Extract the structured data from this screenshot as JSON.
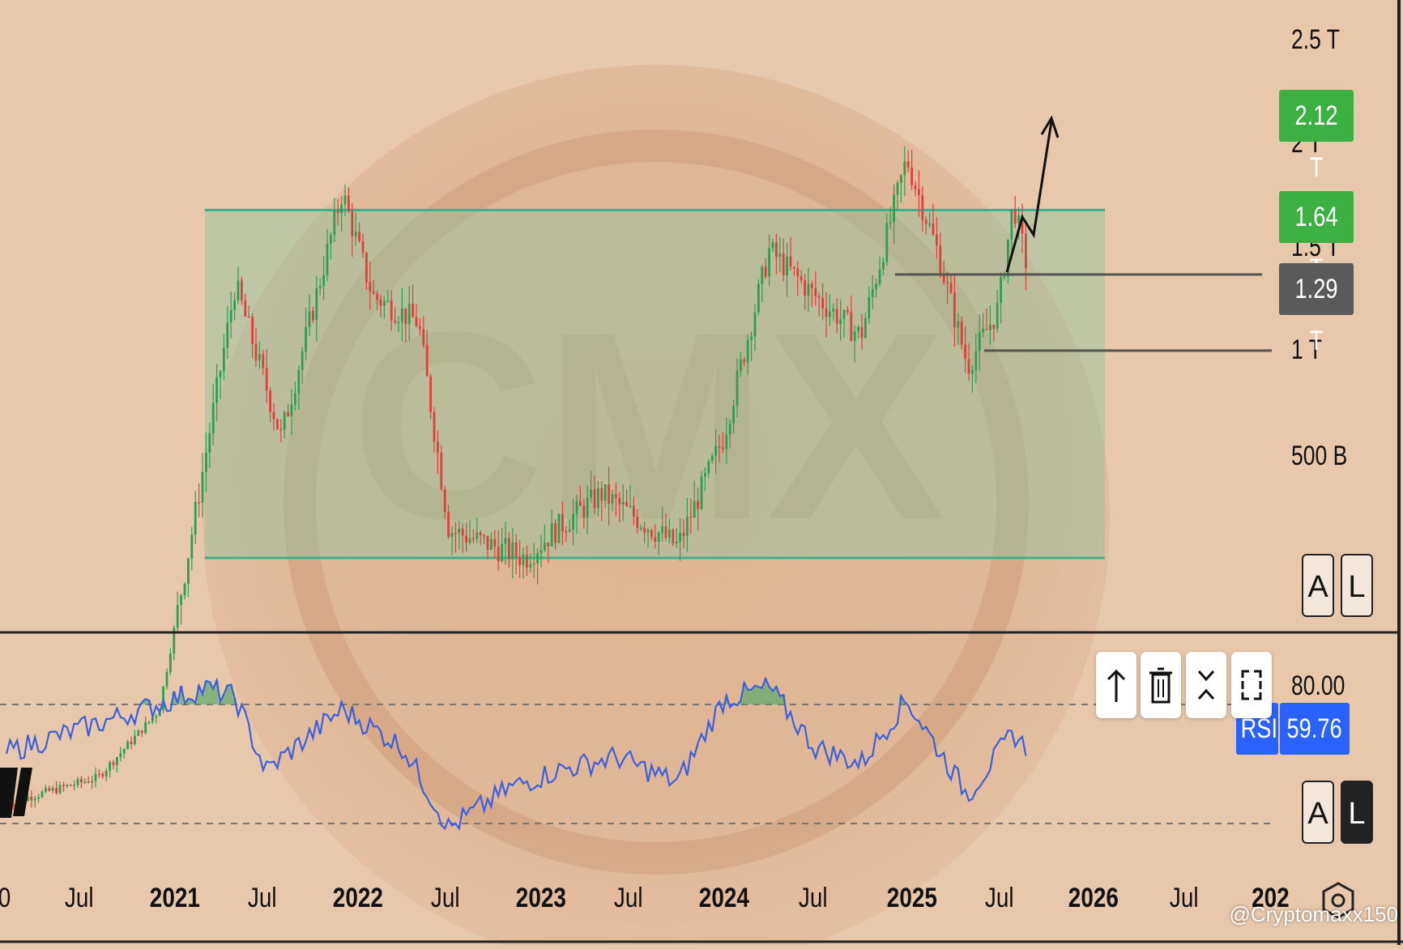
{
  "chart_data": {
    "type": "line",
    "subtype": "candlestick-with-rsi",
    "price_axis": {
      "labels": [
        "2.5 T",
        "2 T",
        "1.5 T",
        "1 T",
        "500 B"
      ],
      "scale": "log"
    },
    "price_tags": [
      {
        "label": "2.12 T",
        "color": "#3cb043"
      },
      {
        "label": "1.64 T",
        "color": "#3cb043"
      },
      {
        "label": "1.29 T",
        "color": "#5a5a5a"
      }
    ],
    "x_axis_labels": [
      "0",
      "Jul",
      "2021",
      "Jul",
      "2022",
      "Jul",
      "2023",
      "Jul",
      "2024",
      "Jul",
      "2025",
      "Jul",
      "2026",
      "Jul",
      "202"
    ],
    "range_box": {
      "top_value": 1.6,
      "bottom_value": 0.5,
      "from": "2021-02",
      "to": "2026-01",
      "color": "#3fae8a"
    },
    "horizontal_levels": [
      1.29,
      1.0
    ],
    "projection_arrow": {
      "from_value": 1.3,
      "to_value": 2.12
    },
    "price_series_approx": [
      {
        "x": "2020-01",
        "y": 0.22
      },
      {
        "x": "2020-07",
        "y": 0.24
      },
      {
        "x": "2020-11",
        "y": 0.3
      },
      {
        "x": "2021-01",
        "y": 0.52
      },
      {
        "x": "2021-04",
        "y": 1.25
      },
      {
        "x": "2021-07",
        "y": 0.75
      },
      {
        "x": "2021-11",
        "y": 1.7
      },
      {
        "x": "2022-01",
        "y": 1.2
      },
      {
        "x": "2022-04",
        "y": 1.1
      },
      {
        "x": "2022-06",
        "y": 0.55
      },
      {
        "x": "2022-11",
        "y": 0.5
      },
      {
        "x": "2023-01",
        "y": 0.55
      },
      {
        "x": "2023-04",
        "y": 0.62
      },
      {
        "x": "2023-09",
        "y": 0.52
      },
      {
        "x": "2023-12",
        "y": 0.75
      },
      {
        "x": "2024-03",
        "y": 1.4
      },
      {
        "x": "2024-06",
        "y": 1.2
      },
      {
        "x": "2024-09",
        "y": 1.05
      },
      {
        "x": "2024-12",
        "y": 1.9
      },
      {
        "x": "2025-02",
        "y": 1.4
      },
      {
        "x": "2025-04",
        "y": 0.95
      },
      {
        "x": "2025-06",
        "y": 1.15
      },
      {
        "x": "2025-07",
        "y": 1.64
      },
      {
        "x": "2025-08",
        "y": 1.29
      }
    ],
    "rsi": {
      "label": "RSI",
      "value": "59.76",
      "upper_level": "80.00",
      "upper": 80,
      "lower": 30,
      "series_approx": [
        {
          "x": "2020-01",
          "y": 60
        },
        {
          "x": "2020-07",
          "y": 72
        },
        {
          "x": "2020-11",
          "y": 80
        },
        {
          "x": "2021-02",
          "y": 87
        },
        {
          "x": "2021-04",
          "y": 83
        },
        {
          "x": "2021-06",
          "y": 52
        },
        {
          "x": "2021-11",
          "y": 78
        },
        {
          "x": "2022-03",
          "y": 62
        },
        {
          "x": "2022-06",
          "y": 28
        },
        {
          "x": "2022-10",
          "y": 45
        },
        {
          "x": "2023-01",
          "y": 52
        },
        {
          "x": "2023-05",
          "y": 58
        },
        {
          "x": "2023-09",
          "y": 47
        },
        {
          "x": "2023-12",
          "y": 82
        },
        {
          "x": "2024-03",
          "y": 87
        },
        {
          "x": "2024-06",
          "y": 62
        },
        {
          "x": "2024-09",
          "y": 55
        },
        {
          "x": "2024-12",
          "y": 82
        },
        {
          "x": "2025-04",
          "y": 42
        },
        {
          "x": "2025-07",
          "y": 68
        },
        {
          "x": "2025-08",
          "y": 60
        }
      ]
    }
  },
  "scale_buttons": {
    "auto": "A",
    "log": "L"
  },
  "toolbar": {
    "up_icon": "arrow-up-icon",
    "delete_icon": "trash-icon",
    "collapse_icon": "collapse-icon",
    "fullscreen_icon": "maximize-icon"
  },
  "watermark_text": "CMX",
  "credit": "@Cryptomaxx150",
  "settings_icon": "gear-icon"
}
